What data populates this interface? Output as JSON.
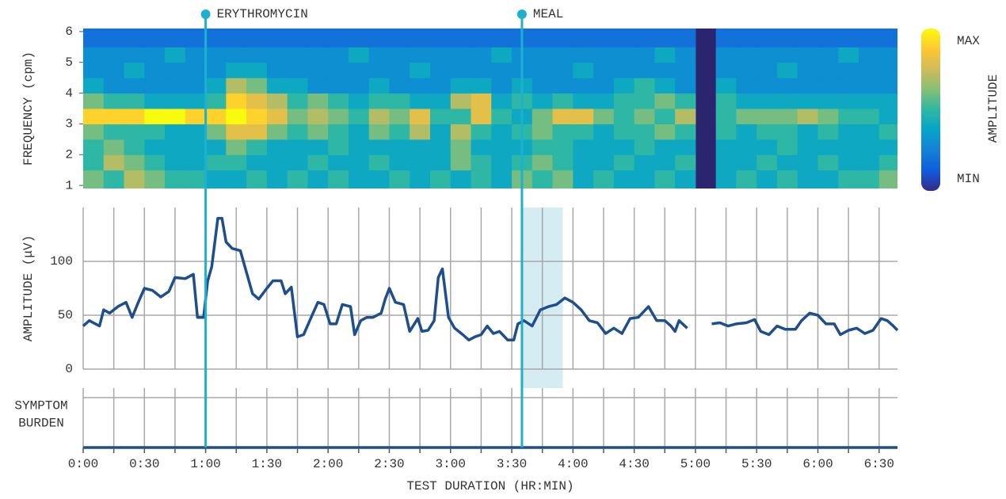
{
  "chart_data": [
    {
      "type": "heatmap",
      "ylabel": "FREQUENCY (cpm)",
      "x_bins": [
        0,
        10,
        20,
        30,
        40,
        50,
        60,
        70,
        80,
        90,
        100,
        110,
        120,
        130,
        140,
        150,
        160,
        170,
        180,
        190,
        200,
        210,
        220,
        230,
        240,
        250,
        260,
        270,
        280,
        290,
        300,
        310,
        320,
        330,
        340,
        350,
        360,
        370,
        380,
        390,
        400
      ],
      "y_bins": [
        0.9,
        1.5,
        2,
        2.5,
        3,
        3.5,
        4,
        4.5,
        5,
        5.5,
        6.1
      ],
      "values": [
        [
          6,
          5,
          7,
          6,
          5,
          5,
          4,
          4,
          5,
          4,
          5,
          4,
          5,
          4,
          4,
          5,
          4,
          5,
          4,
          5,
          4,
          6,
          5,
          6,
          4,
          5,
          4,
          4,
          5,
          4,
          null,
          4,
          5,
          4,
          5,
          4,
          4,
          5,
          5,
          6
        ],
        [
          5,
          7,
          6,
          5,
          4,
          4,
          5,
          5,
          4,
          4,
          4,
          5,
          4,
          4,
          5,
          4,
          4,
          4,
          6,
          5,
          4,
          5,
          6,
          5,
          4,
          4,
          5,
          4,
          4,
          5,
          null,
          4,
          4,
          5,
          4,
          4,
          5,
          4,
          4,
          5
        ],
        [
          5,
          6,
          5,
          4,
          4,
          4,
          4,
          6,
          5,
          4,
          4,
          4,
          5,
          4,
          4,
          4,
          4,
          4,
          6,
          4,
          4,
          4,
          5,
          5,
          4,
          4,
          4,
          5,
          4,
          4,
          null,
          4,
          4,
          4,
          5,
          4,
          4,
          4,
          4,
          4
        ],
        [
          6,
          5,
          5,
          5,
          4,
          4,
          6,
          8,
          8,
          6,
          5,
          6,
          5,
          4,
          6,
          5,
          7,
          4,
          7,
          5,
          4,
          5,
          6,
          5,
          5,
          4,
          5,
          5,
          6,
          5,
          null,
          5,
          4,
          5,
          5,
          4,
          5,
          4,
          4,
          5
        ],
        [
          9,
          9,
          9,
          10,
          10,
          9,
          9,
          10,
          9,
          8,
          6,
          7,
          6,
          5,
          7,
          6,
          8,
          5,
          5,
          8,
          5,
          4,
          6,
          8,
          8,
          6,
          5,
          6,
          5,
          7,
          null,
          5,
          6,
          6,
          6,
          7,
          6,
          5,
          5,
          4
        ],
        [
          6,
          5,
          5,
          4,
          4,
          4,
          5,
          9,
          8,
          7,
          5,
          6,
          5,
          4,
          5,
          5,
          4,
          4,
          7,
          8,
          4,
          5,
          4,
          5,
          4,
          4,
          5,
          5,
          6,
          5,
          null,
          5,
          4,
          4,
          4,
          4,
          4,
          4,
          4,
          4
        ],
        [
          4,
          3,
          3,
          3,
          3,
          3,
          4,
          7,
          6,
          4,
          4,
          3,
          3,
          3,
          4,
          3,
          3,
          3,
          4,
          4,
          3,
          4,
          3,
          3,
          3,
          3,
          4,
          5,
          4,
          3,
          null,
          4,
          3,
          3,
          3,
          3,
          3,
          3,
          3,
          3
        ],
        [
          3,
          3,
          4,
          3,
          3,
          3,
          3,
          4,
          4,
          3,
          3,
          3,
          3,
          3,
          3,
          3,
          4,
          3,
          3,
          3,
          3,
          3,
          3,
          3,
          4,
          3,
          3,
          3,
          3,
          3,
          null,
          3,
          3,
          3,
          4,
          3,
          3,
          3,
          3,
          3
        ],
        [
          3,
          3,
          3,
          3,
          4,
          3,
          3,
          3,
          3,
          3,
          3,
          3,
          3,
          4,
          3,
          3,
          3,
          3,
          3,
          3,
          4,
          3,
          3,
          3,
          3,
          3,
          3,
          3,
          4,
          3,
          null,
          3,
          3,
          3,
          3,
          3,
          3,
          4,
          3,
          3
        ],
        [
          2,
          2,
          2,
          2,
          2,
          2,
          2,
          2,
          2,
          2,
          2,
          2,
          2,
          2,
          2,
          2,
          2,
          2,
          2,
          2,
          2,
          2,
          2,
          2,
          2,
          2,
          2,
          2,
          2,
          2,
          null,
          2,
          2,
          2,
          2,
          2,
          2,
          2,
          2,
          2
        ]
      ],
      "zlim": [
        0,
        10
      ],
      "colorscale": [
        "#352a87",
        "#0f5cdd",
        "#1481d6",
        "#06a4ca",
        "#2eb7a4",
        "#87bf77",
        "#d1bb59",
        "#fec832",
        "#f9fb0e"
      ],
      "colorbar": {
        "label": "AMPLITUDE",
        "max_label": "MAX",
        "min_label": "MIN"
      },
      "xlim": [
        0,
        399
      ],
      "ylim": [
        0.9,
        6.1
      ],
      "yticks": [
        1,
        2,
        3,
        4,
        5,
        6
      ],
      "events": [
        {
          "label": "ERYTHROMYCIN",
          "x": 60
        },
        {
          "label": "MEAL",
          "x": 215
        }
      ],
      "event_color": "#1eb0d0"
    },
    {
      "type": "line",
      "ylabel": "AMPLITUDE (μV)",
      "color": "#1f4e8c",
      "x": [
        0,
        3,
        8,
        10,
        13,
        17,
        21,
        24,
        27,
        30,
        34,
        38,
        42,
        45,
        50,
        54,
        56,
        59,
        61,
        63,
        66,
        68,
        70,
        73,
        77,
        80,
        83,
        86,
        90,
        93,
        97,
        99,
        102,
        105,
        108,
        111,
        115,
        118,
        121,
        124,
        127,
        131,
        133,
        136,
        139,
        142,
        146,
        148,
        150,
        153,
        157,
        160,
        164,
        166,
        169,
        172,
        174,
        176,
        179,
        182,
        186,
        189,
        192,
        195,
        198,
        201,
        204,
        208,
        211,
        213,
        216,
        220,
        224,
        228,
        232,
        236,
        240,
        244,
        248,
        252,
        256,
        260,
        264,
        268,
        272,
        277,
        281,
        285,
        288,
        290,
        292,
        296,
        302,
        308,
        312,
        316,
        320,
        325,
        329,
        332,
        336,
        340,
        344,
        349,
        352,
        356,
        360,
        364,
        368,
        371,
        375,
        379,
        383,
        387,
        391,
        394,
        397,
        399
      ],
      "values": [
        40,
        45,
        40,
        55,
        52,
        58,
        62,
        48,
        62,
        75,
        73,
        67,
        72,
        85,
        84,
        88,
        48,
        48,
        82,
        95,
        140,
        140,
        118,
        112,
        110,
        90,
        70,
        65,
        75,
        82,
        82,
        70,
        76,
        30,
        32,
        45,
        62,
        60,
        42,
        42,
        60,
        58,
        32,
        45,
        48,
        48,
        52,
        65,
        75,
        62,
        60,
        35,
        47,
        35,
        36,
        45,
        85,
        93,
        48,
        38,
        32,
        27,
        30,
        32,
        40,
        33,
        35,
        27,
        27,
        42,
        45,
        40,
        55,
        58,
        60,
        66,
        62,
        55,
        45,
        43,
        33,
        38,
        33,
        47,
        48,
        58,
        45,
        45,
        40,
        35,
        45,
        38,
        null,
        42,
        43,
        40,
        42,
        43,
        46,
        35,
        32,
        40,
        37,
        37,
        45,
        52,
        50,
        42,
        42,
        32,
        36,
        38,
        33,
        36,
        47,
        45,
        40,
        36
      ],
      "shade": [
        215,
        235
      ],
      "shade_color": "#d5ecf3",
      "xlim": [
        0,
        399
      ],
      "ylim": [
        0,
        150
      ],
      "yticks": [
        0,
        50,
        100
      ],
      "grid": true
    },
    {
      "type": "line",
      "ylabel": [
        "SYMPTOM",
        "BURDEN"
      ],
      "color": "#1f4e8c",
      "x": [
        0,
        399
      ],
      "values": [
        0,
        0
      ],
      "xlim": [
        0,
        399
      ],
      "ylim": [
        0,
        1
      ],
      "xlabel": "TEST DURATION (HR:MIN)",
      "xticks": [
        {
          "value": 0,
          "label": "0:00"
        },
        {
          "value": 30,
          "label": "0:30"
        },
        {
          "value": 60,
          "label": "1:00"
        },
        {
          "value": 90,
          "label": "1:30"
        },
        {
          "value": 120,
          "label": "2:00"
        },
        {
          "value": 150,
          "label": "2:30"
        },
        {
          "value": 180,
          "label": "3:00"
        },
        {
          "value": 210,
          "label": "3:30"
        },
        {
          "value": 240,
          "label": "4:00"
        },
        {
          "value": 270,
          "label": "4:30"
        },
        {
          "value": 300,
          "label": "5:00"
        },
        {
          "value": 330,
          "label": "5:30"
        },
        {
          "value": 360,
          "label": "6:00"
        },
        {
          "value": 390,
          "label": "6:30"
        }
      ],
      "xminorticks": [
        15,
        45,
        75,
        105,
        135,
        165,
        195,
        225,
        255,
        285,
        315,
        345,
        375
      ],
      "grid": true
    }
  ]
}
